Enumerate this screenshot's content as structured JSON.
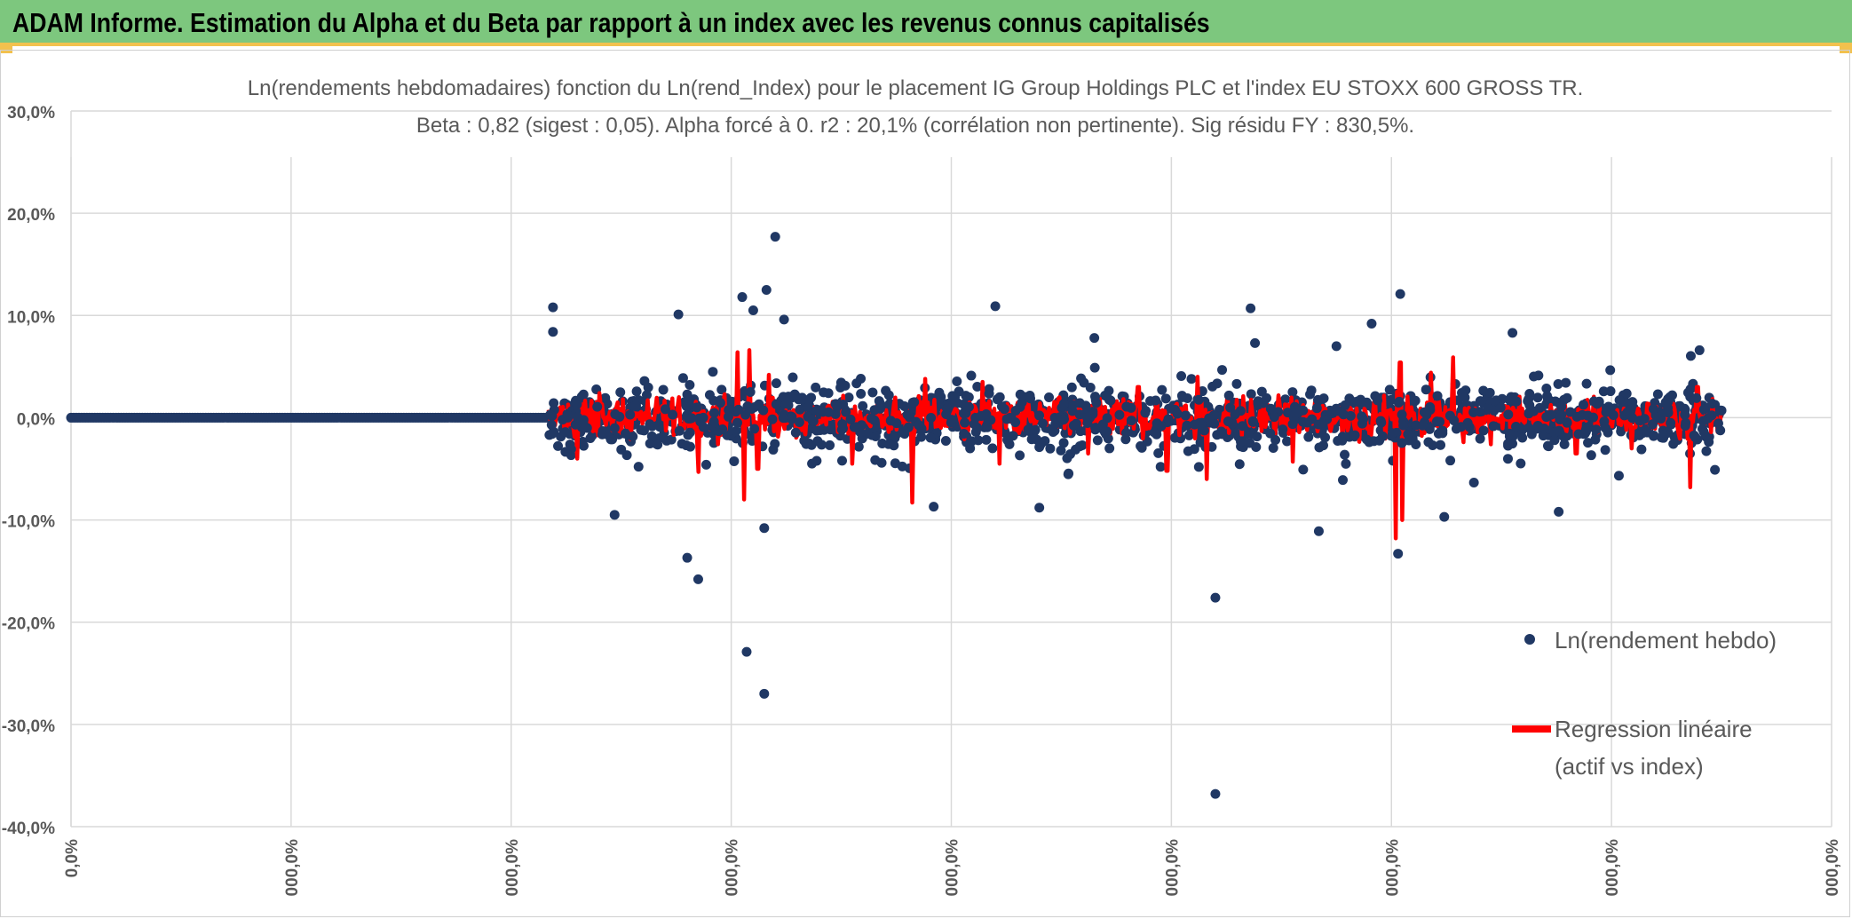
{
  "header": {
    "title": "ADAM Informe. Estimation du Alpha et du Beta par rapport à un index avec les revenus connus capitalisés"
  },
  "colors": {
    "banner": "#7dc77e",
    "points": "#203864",
    "regression": "#ff0000",
    "grid": "#d9d9d9",
    "text": "#595959"
  },
  "chart_data": {
    "type": "scatter",
    "title": "Ln(rendements hebdomadaires) fonction du Ln(rend_Index) pour le placement IG Group Holdings PLC et l'index EU STOXX 600 GROSS TR.",
    "subtitle": "Beta : 0,82 (sigest : 0,05). Alpha forcé à 0. r2 : 20,1% (corrélation non pertinente). Sig résidu FY : 830,5%.",
    "xlabel": "",
    "ylabel": "",
    "ylim": [
      -40,
      30
    ],
    "yticks": [
      {
        "value": 30,
        "label": "30,0%"
      },
      {
        "value": 20,
        "label": "20,0%"
      },
      {
        "value": 10,
        "label": "10,0%"
      },
      {
        "value": 0,
        "label": "0,0%"
      },
      {
        "value": -10,
        "label": "-10,0%"
      },
      {
        "value": -20,
        "label": "-20,0%"
      },
      {
        "value": -30,
        "label": "-30,0%"
      },
      {
        "value": -40,
        "label": "-40,0%"
      }
    ],
    "xticks": [
      {
        "value": 0,
        "label": "0,0%"
      },
      {
        "value": 1,
        "label": "000,0%"
      },
      {
        "value": 2,
        "label": "000,0%"
      },
      {
        "value": 3,
        "label": "000,0%"
      },
      {
        "value": 4,
        "label": "000,0%"
      },
      {
        "value": 5,
        "label": "000,0%"
      },
      {
        "value": 6,
        "label": "000,0%"
      },
      {
        "value": 7,
        "label": "000,0%"
      },
      {
        "value": 8,
        "label": "000,0%"
      }
    ],
    "xlim": [
      0,
      8
    ],
    "grid": true,
    "legend_position": "right",
    "series": [
      {
        "name": "Ln(rendement hebdo)",
        "kind": "points"
      },
      {
        "name": "Regression linéaire (actif vs index)",
        "kind": "line"
      }
    ],
    "zero_segment": {
      "x_start": 0,
      "x_end": 2.17,
      "y": 0
    },
    "active_range": {
      "x_start": 2.17,
      "x_end": 7.5
    },
    "outliers": [
      {
        "x": 2.19,
        "y": 10.8
      },
      {
        "x": 2.19,
        "y": 8.4
      },
      {
        "x": 2.76,
        "y": 10.1
      },
      {
        "x": 2.8,
        "y": -13.7
      },
      {
        "x": 2.85,
        "y": -15.8
      },
      {
        "x": 3.05,
        "y": 11.8
      },
      {
        "x": 3.1,
        "y": 10.5
      },
      {
        "x": 3.16,
        "y": 12.5
      },
      {
        "x": 3.2,
        "y": 17.7
      },
      {
        "x": 3.24,
        "y": 9.6
      },
      {
        "x": 3.07,
        "y": -22.9
      },
      {
        "x": 3.15,
        "y": -27.0
      },
      {
        "x": 3.15,
        "y": -10.8
      },
      {
        "x": 2.47,
        "y": -9.5
      },
      {
        "x": 4.2,
        "y": 10.9
      },
      {
        "x": 4.65,
        "y": 7.8
      },
      {
        "x": 5.2,
        "y": -17.6
      },
      {
        "x": 5.2,
        "y": -36.8
      },
      {
        "x": 5.36,
        "y": 10.7
      },
      {
        "x": 5.67,
        "y": -11.1
      },
      {
        "x": 5.91,
        "y": 9.2
      },
      {
        "x": 6.04,
        "y": 12.1
      },
      {
        "x": 6.03,
        "y": -13.3
      },
      {
        "x": 6.24,
        "y": -9.7
      },
      {
        "x": 6.55,
        "y": 8.3
      },
      {
        "x": 6.76,
        "y": -9.2
      },
      {
        "x": 7.4,
        "y": 6.6
      },
      {
        "x": 4.4,
        "y": -8.8
      },
      {
        "x": 3.92,
        "y": -8.7
      },
      {
        "x": 5.38,
        "y": 7.3
      },
      {
        "x": 5.75,
        "y": 7.0
      },
      {
        "x": 7.47,
        "y": -5.1
      }
    ],
    "regression_spikes": [
      {
        "x": 2.3,
        "y": -4.0
      },
      {
        "x": 2.85,
        "y": -5.3
      },
      {
        "x": 3.03,
        "y": 6.4
      },
      {
        "x": 3.06,
        "y": -8.0
      },
      {
        "x": 3.08,
        "y": 6.6
      },
      {
        "x": 3.12,
        "y": -5.0
      },
      {
        "x": 3.17,
        "y": 4.2
      },
      {
        "x": 3.55,
        "y": -4.5
      },
      {
        "x": 3.82,
        "y": -8.3
      },
      {
        "x": 3.88,
        "y": 3.8
      },
      {
        "x": 4.14,
        "y": 3.5
      },
      {
        "x": 4.22,
        "y": -4.5
      },
      {
        "x": 4.62,
        "y": -3.5
      },
      {
        "x": 4.85,
        "y": 3.0
      },
      {
        "x": 4.98,
        "y": -5.2
      },
      {
        "x": 5.12,
        "y": 4.0
      },
      {
        "x": 5.16,
        "y": -6.0
      },
      {
        "x": 5.55,
        "y": -4.3
      },
      {
        "x": 6.02,
        "y": -11.8
      },
      {
        "x": 6.04,
        "y": 5.4
      },
      {
        "x": 6.05,
        "y": -10.0
      },
      {
        "x": 6.18,
        "y": 4.4
      },
      {
        "x": 6.28,
        "y": 5.9
      },
      {
        "x": 6.45,
        "y": -2.6
      },
      {
        "x": 6.84,
        "y": -3.5
      },
      {
        "x": 7.09,
        "y": -3.0
      },
      {
        "x": 7.36,
        "y": -6.8
      },
      {
        "x": 7.39,
        "y": 3.0
      }
    ]
  }
}
